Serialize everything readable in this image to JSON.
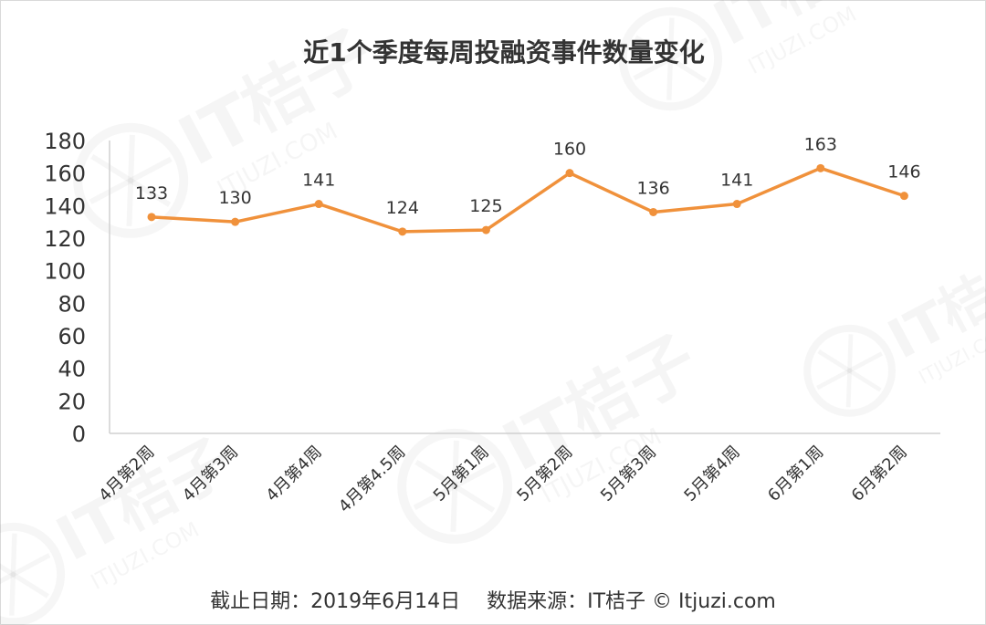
{
  "chart_data": {
    "type": "line",
    "title": "近1个季度每周投融资事件数量变化",
    "categories": [
      "4月第2周",
      "4月第3周",
      "4月第4周",
      "4月第4.5周",
      "5月第1周",
      "5月第2周",
      "5月第3周",
      "5月第4周",
      "6月第1周",
      "6月第2周"
    ],
    "series": [
      {
        "values": [
          133,
          130,
          141,
          124,
          125,
          160,
          136,
          141,
          163,
          146
        ],
        "color": "#F0913B"
      }
    ],
    "ylim": [
      0,
      180
    ],
    "yticks": [
      "0",
      "20",
      "40",
      "60",
      "80",
      "100",
      "120",
      "140",
      "160",
      "180"
    ],
    "xlabel": "",
    "ylabel": "",
    "grid": false,
    "data_labels": true
  },
  "footer": {
    "text": "截止日期：2019年6月14日　 数据来源：IT桔子 © Itjuzi.com"
  },
  "watermark": {
    "brand": "IT桔子",
    "url": "ITJUZI.COM"
  }
}
